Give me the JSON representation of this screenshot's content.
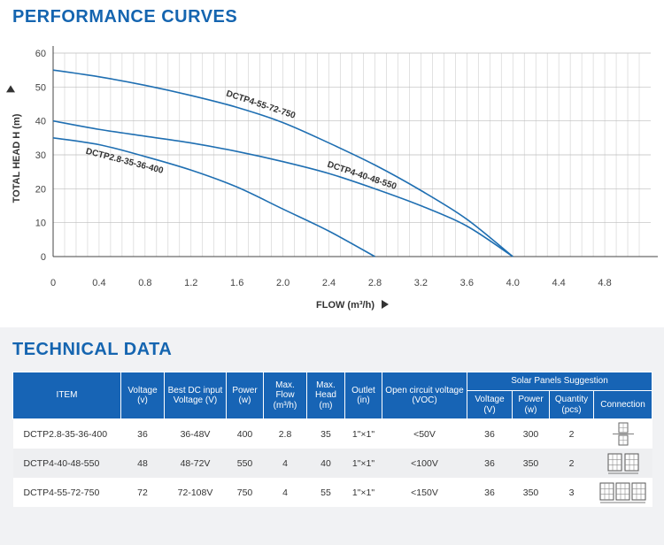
{
  "performance": {
    "title": "PERFORMANCE CURVES"
  },
  "chart_data": {
    "type": "line",
    "xlabel": "FLOW (m³/h)",
    "ylabel": "TOTAL HEAD H (m)",
    "xlim": [
      0,
      5.2
    ],
    "ylim": [
      0,
      60
    ],
    "x_ticks": [
      0,
      0.4,
      0.8,
      1.2,
      1.6,
      2.0,
      2.4,
      2.8,
      3.2,
      3.6,
      4.0,
      4.4,
      4.8
    ],
    "x_tick_labels": [
      "0",
      "0.4",
      "0.8",
      "1.2",
      "1.6",
      "2.0",
      "2.4",
      "2.8",
      "3.2",
      "3.6",
      "4.0",
      "4.4",
      "4.8"
    ],
    "y_ticks": [
      0,
      10,
      20,
      30,
      40,
      50,
      60
    ],
    "y_tick_labels": [
      "0",
      "10",
      "20",
      "30",
      "40",
      "50",
      "60"
    ],
    "grid": true,
    "line_color": "#1f6fb2",
    "series": [
      {
        "name": "DCTP4-55-72-750",
        "x": [
          0,
          0.4,
          0.8,
          1.2,
          1.6,
          2.0,
          2.4,
          2.8,
          3.2,
          3.6,
          4.0
        ],
        "y": [
          55,
          53,
          50.5,
          47.5,
          44,
          39.5,
          33.5,
          27,
          19.5,
          11,
          0
        ]
      },
      {
        "name": "DCTP4-40-48-550",
        "x": [
          0,
          0.4,
          0.8,
          1.2,
          1.6,
          2.0,
          2.4,
          2.8,
          3.2,
          3.6,
          4.0
        ],
        "y": [
          40,
          37.5,
          35.5,
          33.5,
          31,
          28,
          24.5,
          20,
          15,
          9,
          0
        ]
      },
      {
        "name": "DCTP2.8-35-36-400",
        "x": [
          0,
          0.4,
          0.8,
          1.2,
          1.6,
          2.0,
          2.4,
          2.8
        ],
        "y": [
          35,
          33,
          29.5,
          25.5,
          20.5,
          14,
          7.5,
          0
        ]
      }
    ]
  },
  "technical": {
    "title": "TECHNICAL DATA",
    "headers": {
      "item": "ITEM",
      "voltage": "Voltage (v)",
      "best_dc": "Best DC input Voltage (V)",
      "power": "Power (w)",
      "max_flow": "Max. Flow (m³/h)",
      "max_head": "Max. Head (m)",
      "outlet": "Outlet (in)",
      "voc": "Open circuit voltage (VOC)",
      "solar_group": "Solar Panels Suggestion",
      "sp_voltage": "Voltage (V)",
      "sp_power": "Power (w)",
      "sp_quantity": "Quantity (pcs)",
      "sp_connection": "Connection"
    },
    "rows": [
      {
        "item": "DCTP2.8-35-36-400",
        "voltage": "36",
        "best_dc": "36-48V",
        "power": "400",
        "max_flow": "2.8",
        "max_head": "35",
        "outlet": "1\"×1\"",
        "voc": "<50V",
        "sp_voltage": "36",
        "sp_power": "300",
        "sp_quantity": "2",
        "connection_panels": 2,
        "connection_type": "series-vertical"
      },
      {
        "item": "DCTP4-40-48-550",
        "voltage": "48",
        "best_dc": "48-72V",
        "power": "550",
        "max_flow": "4",
        "max_head": "40",
        "outlet": "1\"×1\"",
        "voc": "<100V",
        "sp_voltage": "36",
        "sp_power": "350",
        "sp_quantity": "2",
        "connection_panels": 2,
        "connection_type": "side-by-side"
      },
      {
        "item": "DCTP4-55-72-750",
        "voltage": "72",
        "best_dc": "72-108V",
        "power": "750",
        "max_flow": "4",
        "max_head": "55",
        "outlet": "1\"×1\"",
        "voc": "<150V",
        "sp_voltage": "36",
        "sp_power": "350",
        "sp_quantity": "3",
        "connection_panels": 3,
        "connection_type": "side-by-side"
      }
    ]
  }
}
